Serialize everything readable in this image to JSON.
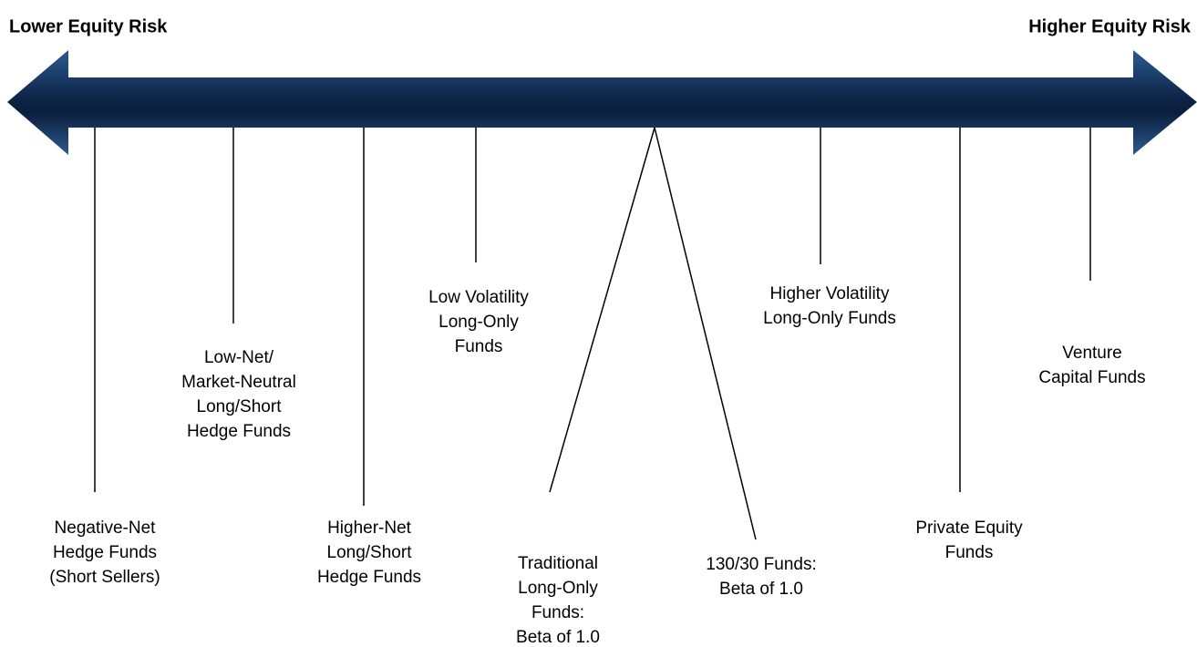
{
  "header": {
    "left": "Lower Equity Risk",
    "right": "Higher Equity Risk"
  },
  "nodes": [
    {
      "label": [
        "Negative-Net",
        "Hedge Funds",
        "(Short Sellers)"
      ]
    },
    {
      "label": [
        "Low-Net/",
        "Market-Neutral",
        "Long/Short",
        "Hedge Funds"
      ]
    },
    {
      "label": [
        "Higher-Net",
        "Long/Short",
        "Hedge Funds"
      ]
    },
    {
      "label": [
        "Low Volatility",
        "Long-Only",
        "Funds"
      ]
    },
    {
      "label": [
        "Traditional",
        "Long-Only",
        "Funds:",
        "Beta of 1.0"
      ]
    },
    {
      "label": [
        "130/30 Funds:",
        "Beta of 1.0"
      ]
    },
    {
      "label": [
        "Higher Volatility",
        "Long-Only Funds"
      ]
    },
    {
      "label": [
        "Private Equity",
        "Funds"
      ]
    },
    {
      "label": [
        "Venture",
        "Capital Funds"
      ]
    }
  ]
}
